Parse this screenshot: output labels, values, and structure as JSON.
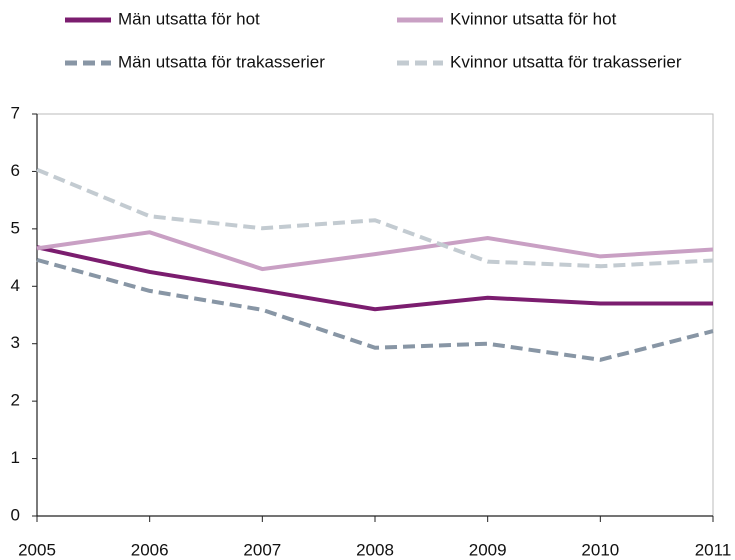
{
  "chart_data": {
    "type": "line",
    "x": [
      2005,
      2006,
      2007,
      2008,
      2009,
      2010,
      2011
    ],
    "series": [
      {
        "name": "Män utsatta för hot",
        "color": "#7b1d6f",
        "dashed": false,
        "values": [
          4.68,
          4.25,
          3.93,
          3.6,
          3.8,
          3.7,
          3.7
        ]
      },
      {
        "name": "Kvinnor utsatta för hot",
        "color": "#c9a0c4",
        "dashed": false,
        "values": [
          4.66,
          4.94,
          4.3,
          4.56,
          4.84,
          4.52,
          4.64
        ]
      },
      {
        "name": "Män utsatta för trakasserier",
        "color": "#8896a5",
        "dashed": true,
        "values": [
          4.46,
          3.92,
          3.59,
          2.93,
          3.0,
          2.72,
          3.22
        ]
      },
      {
        "name": "Kvinnor utsatta för trakasserier",
        "color": "#c3cbd1",
        "dashed": true,
        "values": [
          6.03,
          5.22,
          5.01,
          5.15,
          4.43,
          4.35,
          4.45
        ]
      }
    ],
    "xlim": [
      2005,
      2011
    ],
    "xticks": [
      2005,
      2006,
      2007,
      2008,
      2009,
      2010,
      2011
    ],
    "ylim": [
      0,
      7
    ],
    "yticks": [
      0,
      1,
      2,
      3,
      4,
      5,
      6,
      7
    ]
  }
}
